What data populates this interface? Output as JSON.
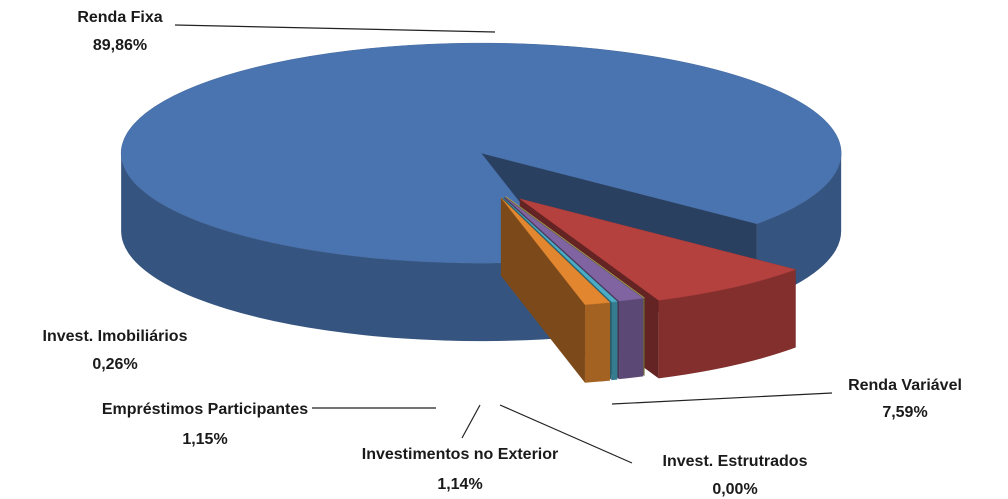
{
  "chart_data": {
    "type": "pie",
    "categories": [
      "Renda Variável",
      "Invest. Estrutrados",
      "Investimentos no Exterior",
      "Invest. Imobiliários",
      "Empréstimos Participantes",
      "Renda Fixa"
    ],
    "values": [
      7.59,
      0.0,
      1.14,
      0.26,
      1.15,
      89.86
    ],
    "value_labels": [
      "7,59%",
      "0,00%",
      "1,14%",
      "0,26%",
      "1,15%",
      "89,86%"
    ],
    "colors": [
      "#b5413f",
      "#c9c36a",
      "#8064a2",
      "#4bacc6",
      "#e2872f",
      "#4a74b0"
    ]
  }
}
